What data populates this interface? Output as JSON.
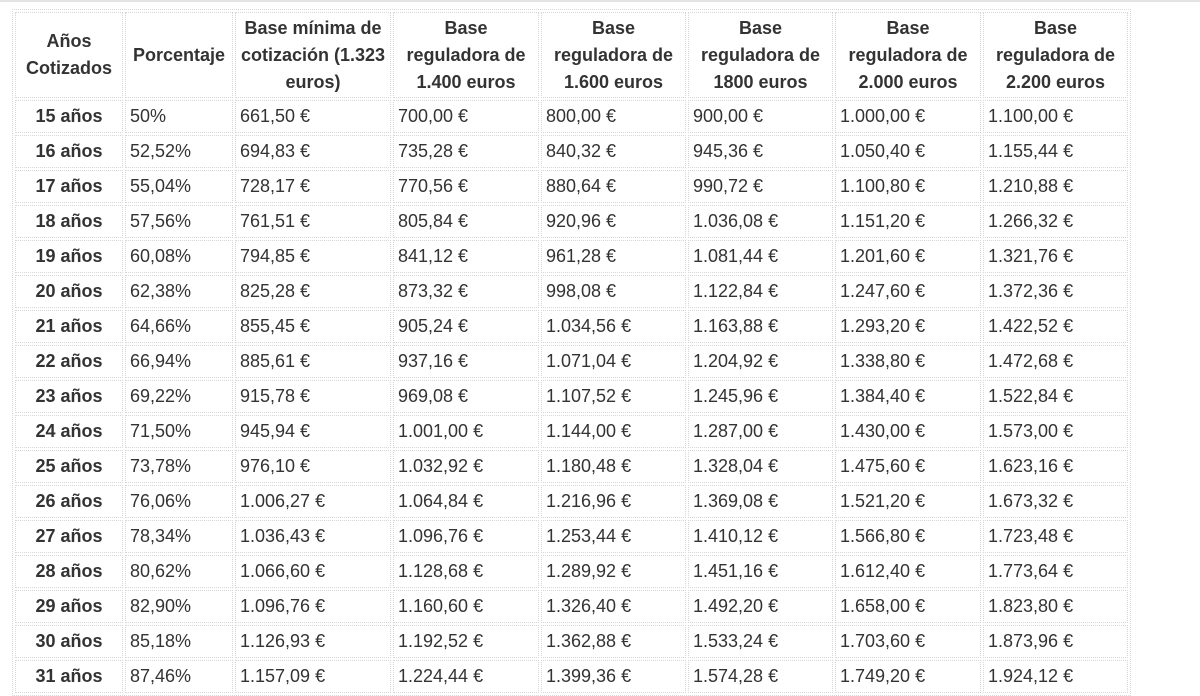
{
  "table": {
    "headers": [
      "Años Cotizados",
      "Porcentaje",
      "Base mínima de cotización (1.323 euros)",
      "Base reguladora de 1.400 euros",
      "Base reguladora de 1.600 euros",
      "Base reguladora de 1800 euros",
      "Base reguladora de 2.000 euros",
      "Base reguladora de 2.200 euros"
    ],
    "rows": [
      [
        "15 años",
        "50%",
        "661,50 €",
        "700,00 €",
        "800,00 €",
        "900,00 €",
        "1.000,00 €",
        "1.100,00 €"
      ],
      [
        "16 años",
        "52,52%",
        "694,83 €",
        "735,28 €",
        "840,32 €",
        "945,36 €",
        "1.050,40 €",
        "1.155,44 €"
      ],
      [
        "17 años",
        "55,04%",
        "728,17 €",
        "770,56 €",
        "880,64 €",
        "990,72 €",
        "1.100,80 €",
        "1.210,88 €"
      ],
      [
        "18 años",
        "57,56%",
        "761,51 €",
        "805,84 €",
        "920,96 €",
        "1.036,08 €",
        "1.151,20 €",
        "1.266,32 €"
      ],
      [
        "19 años",
        "60,08%",
        "794,85 €",
        "841,12 €",
        "961,28 €",
        "1.081,44 €",
        "1.201,60 €",
        "1.321,76 €"
      ],
      [
        "20 años",
        "62,38%",
        "825,28 €",
        "873,32 €",
        "998,08 €",
        "1.122,84 €",
        "1.247,60 €",
        "1.372,36 €"
      ],
      [
        "21 años",
        "64,66%",
        "855,45 €",
        "905,24 €",
        "1.034,56 €",
        "1.163,88 €",
        "1.293,20 €",
        "1.422,52 €"
      ],
      [
        "22 años",
        "66,94%",
        "885,61 €",
        "937,16 €",
        "1.071,04 €",
        "1.204,92 €",
        "1.338,80 €",
        "1.472,68 €"
      ],
      [
        "23 años",
        "69,22%",
        "915,78 €",
        "969,08 €",
        "1.107,52 €",
        "1.245,96 €",
        "1.384,40 €",
        "1.522,84 €"
      ],
      [
        "24 años",
        "71,50%",
        "945,94 €",
        "1.001,00 €",
        "1.144,00 €",
        "1.287,00 €",
        "1.430,00 €",
        "1.573,00 €"
      ],
      [
        "25 años",
        "73,78%",
        "976,10 €",
        "1.032,92 €",
        "1.180,48 €",
        "1.328,04 €",
        "1.475,60 €",
        "1.623,16 €"
      ],
      [
        "26 años",
        "76,06%",
        "1.006,27 €",
        "1.064,84 €",
        "1.216,96 €",
        "1.369,08 €",
        "1.521,20 €",
        "1.673,32 €"
      ],
      [
        "27 años",
        "78,34%",
        "1.036,43 €",
        "1.096,76 €",
        "1.253,44 €",
        "1.410,12 €",
        "1.566,80 €",
        "1.723,48 €"
      ],
      [
        "28 años",
        "80,62%",
        "1.066,60 €",
        "1.128,68 €",
        "1.289,92 €",
        "1.451,16 €",
        "1.612,40 €",
        "1.773,64 €"
      ],
      [
        "29 años",
        "82,90%",
        "1.096,76 €",
        "1.160,60 €",
        "1.326,40 €",
        "1.492,20 €",
        "1.658,00 €",
        "1.823,80 €"
      ],
      [
        "30 años",
        "85,18%",
        "1.126,93 €",
        "1.192,52 €",
        "1.362,88 €",
        "1.533,24 €",
        "1.703,60 €",
        "1.873,96 €"
      ],
      [
        "31 años",
        "87,46%",
        "1.157,09 €",
        "1.224,44 €",
        "1.399,36 €",
        "1.574,28 €",
        "1.749,20 €",
        "1.924,12 €"
      ]
    ]
  }
}
